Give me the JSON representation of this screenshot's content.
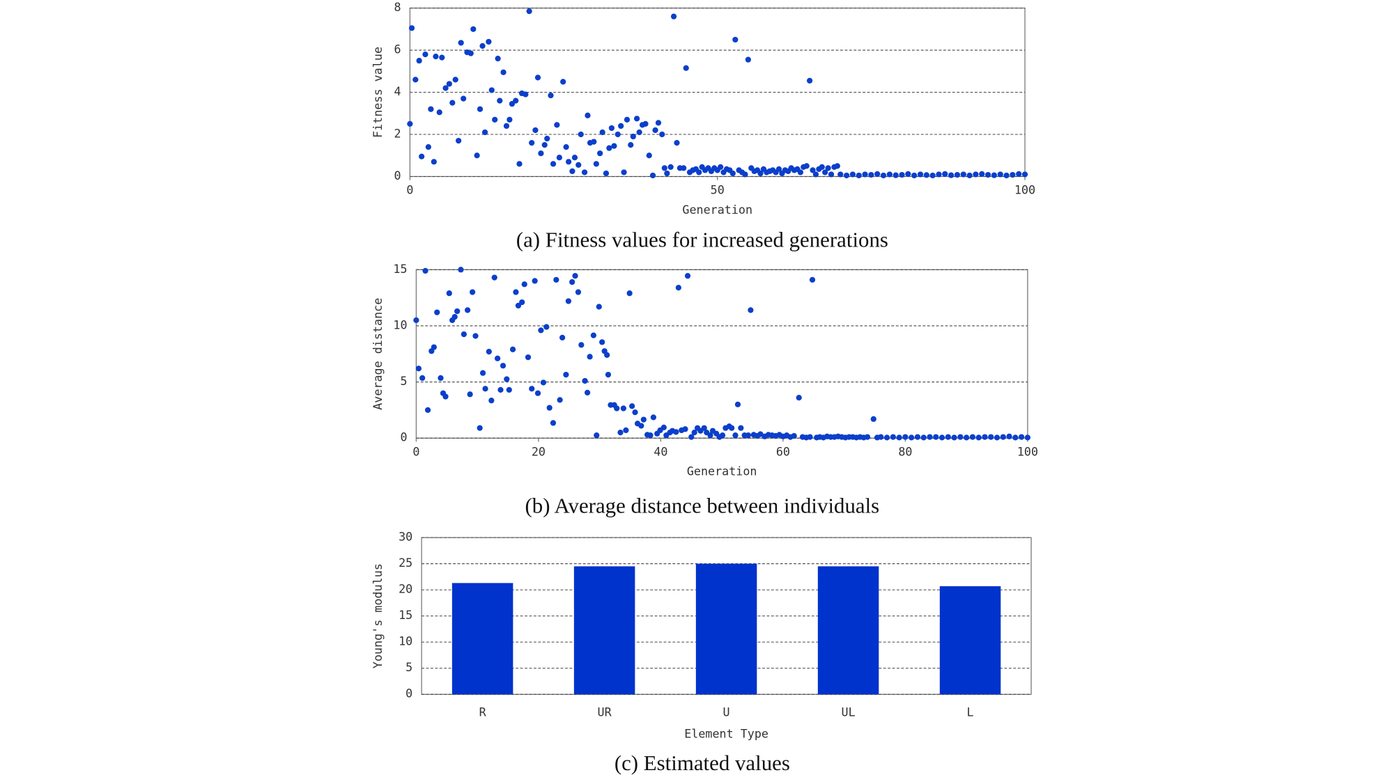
{
  "chart_data": [
    {
      "type": "scatter",
      "caption": "(a) Fitness values for increased generations",
      "xlabel": "Generation",
      "ylabel": "Fitness value",
      "color": "#0b3fcb",
      "grid": true,
      "xlim": [
        0,
        100
      ],
      "xticks": [
        0,
        50,
        100
      ],
      "ylim": [
        0,
        8
      ],
      "yticks": [
        0,
        2,
        4,
        6,
        8
      ],
      "x": [
        0,
        0.3,
        0.9,
        1.5,
        1.9,
        2.5,
        3,
        3.4,
        3.9,
        4.2,
        4.8,
        5.2,
        5.8,
        6.4,
        6.9,
        7.4,
        7.9,
        8.3,
        8.7,
        9.3,
        9.9,
        10.3,
        10.9,
        11.4,
        11.8,
        12.2,
        12.8,
        13.3,
        13.8,
        14.3,
        14.6,
        15.2,
        15.7,
        16.2,
        16.6,
        17.2,
        17.8,
        18.2,
        18.8,
        19.4,
        19.8,
        20.4,
        20.8,
        21.3,
        21.9,
        22.3,
        22.9,
        23.3,
        23.9,
        24.3,
        24.9,
        25.4,
        25.8,
        26.4,
        26.8,
        27.4,
        27.8,
        28.4,
        28.9,
        29.3,
        29.9,
        30.3,
        30.9,
        31.3,
        31.9,
        32.4,
        32.8,
        33.2,
        33.8,
        34.3,
        34.8,
        35.3,
        35.9,
        36.3,
        36.9,
        37.3,
        37.8,
        38.3,
        38.9,
        39.5,
        39.9,
        40.4,
        41,
        41.4,
        41.8,
        42.4,
        42.9,
        43.4,
        43.9,
        44.5,
        44.9,
        45.5,
        46,
        46.5,
        47,
        47.5,
        48,
        48.5,
        49,
        49.5,
        50,
        50.5,
        51,
        51.5,
        52,
        52.5,
        52.9,
        53.5,
        54,
        54.5,
        55,
        55.5,
        56,
        56.5,
        57,
        57.5,
        58,
        58.5,
        59,
        59.5,
        60,
        60.5,
        61,
        61.5,
        62,
        62.5,
        63,
        63.5,
        64,
        64.5,
        65,
        65.5,
        66,
        66.5,
        67,
        67.5,
        68,
        68.5,
        69,
        69.5,
        70,
        71,
        72,
        73,
        74,
        75,
        76,
        77,
        78,
        79,
        80,
        81,
        82,
        83,
        84,
        85,
        86,
        87,
        88,
        89,
        90,
        91,
        92,
        93,
        94,
        95,
        96,
        97,
        98,
        99,
        100
      ],
      "values": [
        2.5,
        7.05,
        4.6,
        5.5,
        0.95,
        5.8,
        1.4,
        3.2,
        0.7,
        5.7,
        3.05,
        5.65,
        4.2,
        4.4,
        3.5,
        4.6,
        1.7,
        6.35,
        3.7,
        5.9,
        5.85,
        7,
        1,
        3.2,
        6.2,
        2.1,
        6.4,
        4.1,
        2.7,
        5.6,
        3.6,
        4.95,
        2.4,
        2.7,
        3.45,
        3.6,
        0.6,
        3.95,
        3.9,
        7.85,
        1.6,
        2.2,
        4.7,
        1.1,
        1.5,
        1.8,
        3.85,
        0.6,
        2.45,
        0.9,
        4.5,
        1.4,
        0.7,
        0.25,
        0.9,
        0.55,
        2,
        0.2,
        2.9,
        1.6,
        1.65,
        0.6,
        1.1,
        2.1,
        0.15,
        1.35,
        2.3,
        1.45,
        2,
        2.4,
        0.2,
        2.7,
        1.5,
        1.9,
        2.75,
        2.1,
        2.45,
        2.5,
        1,
        0.05,
        2.2,
        2.55,
        2,
        0.4,
        0.15,
        0.45,
        7.6,
        1.6,
        0.4,
        0.4,
        5.15,
        0.2,
        0.3,
        0.35,
        0.2,
        0.45,
        0.3,
        0.4,
        0.25,
        0.4,
        0.3,
        0.45,
        0.2,
        0.35,
        0.3,
        0.15,
        6.5,
        0.3,
        0.2,
        0.1,
        5.55,
        0.4,
        0.25,
        0.3,
        0.15,
        0.35,
        0.2,
        0.25,
        0.3,
        0.2,
        0.35,
        0.15,
        0.3,
        0.25,
        0.4,
        0.3,
        0.35,
        0.2,
        0.45,
        0.5,
        4.55,
        0.3,
        0.1,
        0.35,
        0.45,
        0.2,
        0.4,
        0.1,
        0.45,
        0.5,
        0.1,
        0.05,
        0.1,
        0.05,
        0.1,
        0.08,
        0.12,
        0.05,
        0.1,
        0.06,
        0.08,
        0.12,
        0.05,
        0.1,
        0.07,
        0.05,
        0.1,
        0.12,
        0.06,
        0.08,
        0.1,
        0.05,
        0.1,
        0.12,
        0.08,
        0.06,
        0.1,
        0.05,
        0.08,
        0.12,
        0.1
      ]
    },
    {
      "type": "scatter",
      "caption": "(b) Average distance between individuals",
      "xlabel": "Generation",
      "ylabel": "Average distance",
      "color": "#0b3fcb",
      "grid": true,
      "xlim": [
        0,
        100
      ],
      "xticks": [
        0,
        20,
        40,
        60,
        80,
        100
      ],
      "ylim": [
        0,
        15
      ],
      "yticks": [
        0,
        5,
        10,
        15
      ],
      "x": [
        0,
        0.4,
        1,
        1.5,
        1.9,
        2.5,
        2.9,
        3.4,
        4,
        4.4,
        4.8,
        5.4,
        5.9,
        6.3,
        6.7,
        7.3,
        7.8,
        8.4,
        8.8,
        9.2,
        9.7,
        10.4,
        10.9,
        11.3,
        11.9,
        12.3,
        12.8,
        13.3,
        13.8,
        14.2,
        14.8,
        15.2,
        15.8,
        16.3,
        16.7,
        17.3,
        17.7,
        18.3,
        18.9,
        19.4,
        19.9,
        20.4,
        20.8,
        21.3,
        21.8,
        22.4,
        22.9,
        23.5,
        23.9,
        24.5,
        24.9,
        25.5,
        26,
        26.5,
        27,
        27.6,
        28,
        28.4,
        29,
        29.5,
        29.9,
        30.4,
        30.8,
        31.2,
        31.4,
        31.8,
        32.4,
        32.8,
        33.4,
        33.9,
        34.3,
        34.9,
        35.3,
        35.8,
        36.2,
        36.8,
        37.2,
        37.8,
        38.3,
        38.8,
        39.4,
        39.9,
        40.5,
        40.9,
        41.5,
        41.9,
        42.5,
        42.9,
        43.4,
        44,
        44.4,
        45,
        45.5,
        46,
        46.5,
        47.1,
        47.5,
        48.1,
        48.5,
        49.1,
        49.6,
        50.1,
        50.6,
        51.2,
        51.6,
        52.2,
        52.6,
        53.1,
        53.7,
        54.3,
        54.7,
        55.2,
        55.8,
        56.3,
        57,
        57.6,
        58.2,
        58.8,
        59.4,
        60,
        60.6,
        61.2,
        61.8,
        62.6,
        63.2,
        63.8,
        64.4,
        64.8,
        65.5,
        66,
        66.6,
        67.2,
        67.8,
        68.4,
        69,
        69.6,
        70.2,
        70.8,
        71.4,
        72,
        72.6,
        73.2,
        73.8,
        74.8,
        75.4,
        76,
        77,
        78,
        79,
        80,
        81,
        82,
        83,
        84,
        85,
        86,
        87,
        88,
        89,
        90,
        91,
        92,
        93,
        94,
        95,
        96,
        97,
        98,
        99,
        100
      ],
      "values": [
        10.5,
        6.2,
        5.35,
        14.9,
        2.5,
        7.75,
        8.1,
        11.2,
        5.35,
        4,
        3.7,
        12.9,
        10.5,
        10.8,
        11.3,
        15,
        9.25,
        11.4,
        3.9,
        13,
        9.1,
        0.9,
        5.8,
        4.4,
        7.7,
        3.35,
        14.3,
        7.1,
        4.3,
        6.45,
        5.25,
        4.3,
        7.9,
        13,
        11.8,
        12.1,
        13.7,
        7.2,
        4.4,
        14,
        4,
        9.6,
        4.95,
        9.9,
        2.7,
        1.35,
        14.1,
        3.4,
        8.95,
        5.65,
        12.2,
        13.9,
        14.45,
        13,
        8.3,
        5.1,
        4.05,
        7.25,
        9.15,
        0.25,
        11.7,
        8.55,
        7.75,
        7.4,
        5.65,
        2.95,
        2.95,
        2.65,
        0.5,
        2.65,
        0.7,
        12.9,
        2.85,
        2.3,
        1.3,
        1.1,
        1.65,
        0.3,
        0.25,
        1.85,
        0.4,
        0.7,
        0.95,
        0.25,
        0.5,
        0.65,
        0.55,
        13.4,
        0.7,
        0.8,
        14.45,
        0.1,
        0.5,
        0.9,
        0.65,
        0.9,
        0.5,
        0.25,
        0.65,
        0.4,
        0.1,
        0.25,
        0.9,
        1.05,
        0.9,
        0.25,
        3,
        0.9,
        0.25,
        0.25,
        11.4,
        0.3,
        0.2,
        0.35,
        0.15,
        0.3,
        0.25,
        0.2,
        0.3,
        0.15,
        0.25,
        0.1,
        0.2,
        3.6,
        0.1,
        0.05,
        0.1,
        14.1,
        0.05,
        0.1,
        0.05,
        0.15,
        0.1,
        0.1,
        0.15,
        0.1,
        0.05,
        0.1,
        0.1,
        0.05,
        0.1,
        0.05,
        0.1,
        1.7,
        0.05,
        0.1,
        0.05,
        0.1,
        0.05,
        0.1,
        0.05,
        0.1,
        0.05,
        0.1,
        0.1,
        0.05,
        0.1,
        0.05,
        0.1,
        0.05,
        0.1,
        0.05,
        0.1,
        0.1,
        0.05,
        0.1,
        0.15,
        0.05,
        0.1,
        0.05
      ]
    },
    {
      "type": "bar",
      "caption": "(c) Estimated values",
      "xlabel": "Element Type",
      "ylabel": "Young's modulus",
      "color": "#0033cc",
      "grid": true,
      "categories": [
        "R",
        "UR",
        "U",
        "UL",
        "L"
      ],
      "values": [
        21.3,
        24.5,
        25.0,
        24.5,
        20.7
      ],
      "ylim": [
        0,
        30
      ],
      "yticks": [
        0,
        5,
        10,
        15,
        20,
        25,
        30
      ]
    }
  ]
}
